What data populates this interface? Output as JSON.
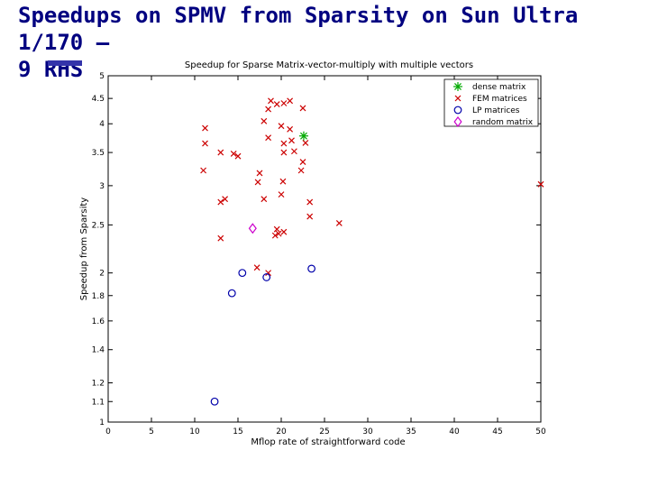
{
  "slide": {
    "title_line1": "Speedups on SPMV from Sparsity on Sun Ultra 1/170 –",
    "title_line2": "9 RHS"
  },
  "chart_data": {
    "type": "scatter",
    "title": "Speedup for Sparse Matrix-vector-multiply with multiple vectors",
    "xlabel": "Mflop rate of straightforward code",
    "ylabel": "Speedup from Sparsity",
    "xlim": [
      0,
      50
    ],
    "ylim": [
      1,
      5
    ],
    "y_scale": "log",
    "x_ticks": [
      0,
      5,
      10,
      15,
      20,
      25,
      30,
      35,
      40,
      45,
      50
    ],
    "y_ticks": [
      1,
      1.1,
      1.2,
      1.4,
      1.6,
      1.8,
      2,
      2.5,
      3,
      3.5,
      4,
      4.5,
      5
    ],
    "y_tick_labels": [
      "1",
      "1.1",
      "1.2",
      "1.4",
      "1.6",
      "1.8",
      "2",
      "2.5",
      "3",
      "3.5",
      "4",
      "4.5",
      "5"
    ],
    "legend_position": "top-right",
    "series": [
      {
        "name": "dense matrix",
        "marker": "*",
        "color": "#00aa00",
        "points": [
          [
            22.6,
            3.78
          ]
        ]
      },
      {
        "name": "FEM matrices",
        "marker": "x",
        "color": "#cc0000",
        "points": [
          [
            11.2,
            3.92
          ],
          [
            11.2,
            3.65
          ],
          [
            11.0,
            3.22
          ],
          [
            13.0,
            3.5
          ],
          [
            14.5,
            3.48
          ],
          [
            15.0,
            3.44
          ],
          [
            17.5,
            3.18
          ],
          [
            17.3,
            3.05
          ],
          [
            18.0,
            2.82
          ],
          [
            13.0,
            2.78
          ],
          [
            13.5,
            2.82
          ],
          [
            13.0,
            2.35
          ],
          [
            18.0,
            4.05
          ],
          [
            18.5,
            3.75
          ],
          [
            18.5,
            4.28
          ],
          [
            18.8,
            4.45
          ],
          [
            19.5,
            4.38
          ],
          [
            20.3,
            4.4
          ],
          [
            21.0,
            4.45
          ],
          [
            22.5,
            4.3
          ],
          [
            20.0,
            3.96
          ],
          [
            21.0,
            3.9
          ],
          [
            21.2,
            3.7
          ],
          [
            20.3,
            3.65
          ],
          [
            20.3,
            3.5
          ],
          [
            21.5,
            3.52
          ],
          [
            22.5,
            3.35
          ],
          [
            22.3,
            3.22
          ],
          [
            22.8,
            3.66
          ],
          [
            20.2,
            3.06
          ],
          [
            20.0,
            2.88
          ],
          [
            19.5,
            2.45
          ],
          [
            19.7,
            2.4
          ],
          [
            20.3,
            2.42
          ],
          [
            19.3,
            2.38
          ],
          [
            17.2,
            2.05
          ],
          [
            18.5,
            2.0
          ],
          [
            23.3,
            2.78
          ],
          [
            23.3,
            2.6
          ],
          [
            26.7,
            2.52
          ],
          [
            50.0,
            3.02
          ]
        ]
      },
      {
        "name": "LP matrices",
        "marker": "o",
        "color": "#0000aa",
        "points": [
          [
            15.5,
            2.0
          ],
          [
            18.3,
            1.96
          ],
          [
            14.3,
            1.82
          ],
          [
            23.5,
            2.04
          ],
          [
            12.3,
            1.1
          ]
        ]
      },
      {
        "name": "random matrix",
        "marker": "diamond",
        "color": "#cc00cc",
        "points": [
          [
            16.7,
            2.46
          ]
        ]
      }
    ]
  }
}
